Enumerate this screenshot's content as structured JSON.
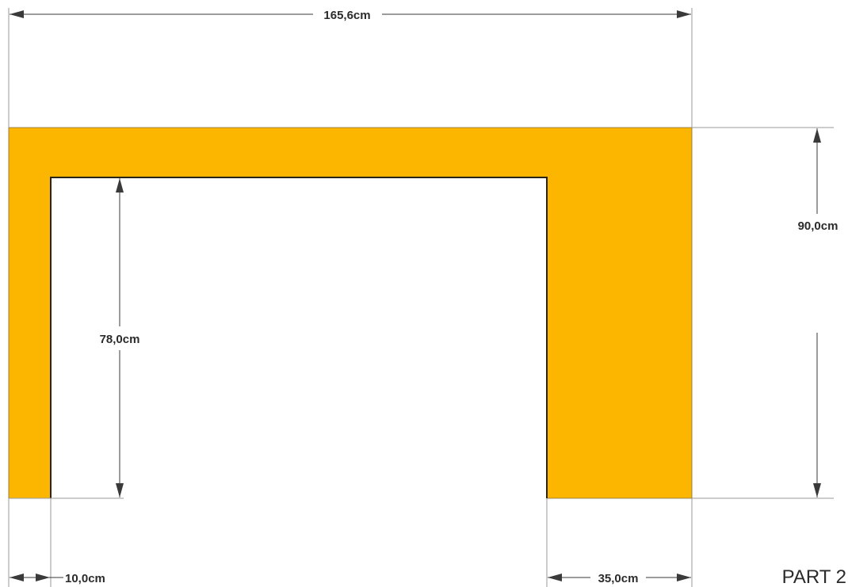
{
  "part_label": "PART 2",
  "colors": {
    "panel_fill": "#fdb600",
    "dimension_text": "#2b2b2b",
    "extension_line": "#9a9a9a"
  },
  "dimensions": {
    "overall_width": "165,6cm",
    "overall_height": "90,0cm",
    "inner_opening_height": "78,0cm",
    "left_leg_width": "10,0cm",
    "right_leg_width": "35,0cm"
  }
}
